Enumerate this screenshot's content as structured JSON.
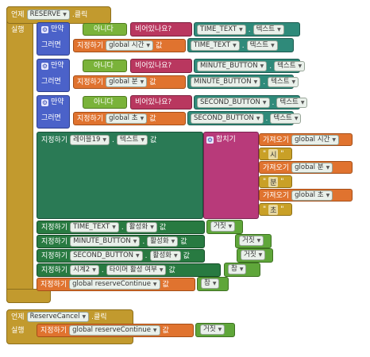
{
  "when": "언제",
  "do": "실행",
  "click": ".클릭",
  "if": "만약",
  "then": "그러면",
  "not": "아니다",
  "is_empty": "비어있나요?",
  "set": "지정하기",
  "to": "값",
  "text": "텍스트",
  "join": "합치기",
  "get": "가져오기",
  "enabled": "활성화",
  "false": "거짓",
  "true": "참",
  "event1": {
    "component": "RESERVE",
    "if_blocks": [
      {
        "component": "TIME_TEXT",
        "global": "global 시간",
        "component2": "TIME_TEXT"
      },
      {
        "component": "MINUTE_BUTTON",
        "global": "global 분",
        "component2": "MINUTE_BUTTON"
      },
      {
        "component": "SECOND_BUTTON",
        "global": "global 초",
        "component2": "SECOND_BUTTON"
      }
    ],
    "label_component": "레이블19",
    "join_items": [
      "global 시간",
      "시",
      "global 분",
      "분",
      "global 초",
      "초"
    ],
    "enable_sets": [
      {
        "component": "TIME_TEXT",
        "prop": "활성화",
        "value": "거짓"
      },
      {
        "component": "MINUTE_BUTTON",
        "prop": "활성화",
        "value": "거짓"
      },
      {
        "component": "SECOND_BUTTON",
        "prop": "활성화",
        "value": "거짓"
      },
      {
        "component": "시계2",
        "prop": "타이머 활성 여부",
        "value": "참"
      }
    ],
    "global_set": {
      "var": "global reserveContinue",
      "value": "참"
    }
  },
  "event2": {
    "component": "ReserveCancel",
    "global_set": {
      "var": "global reserveContinue",
      "value": "거짓"
    }
  }
}
